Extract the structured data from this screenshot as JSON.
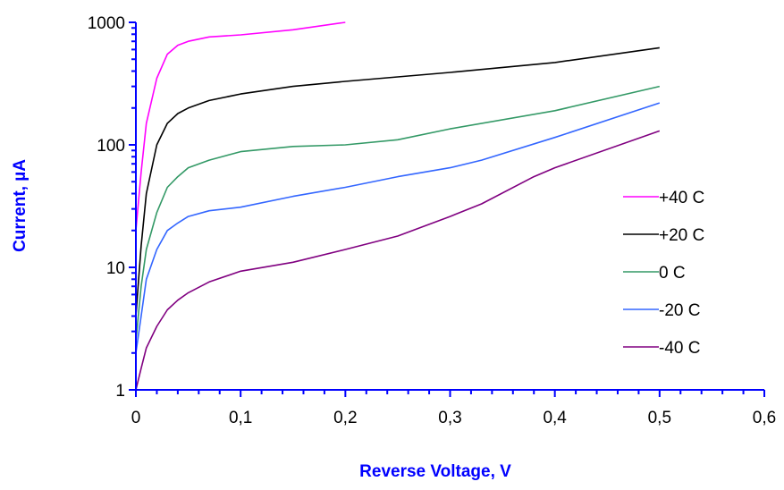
{
  "chart_data": {
    "type": "line",
    "xlabel": "Reverse Voltage, V",
    "ylabel": "Current, µA",
    "xlim": [
      0,
      0.6
    ],
    "ylim": [
      1,
      1000
    ],
    "yscale": "log",
    "xticks": [
      "0",
      "0,1",
      "0,2",
      "0,3",
      "0,4",
      "0,5",
      "0,6"
    ],
    "yticks": [
      "1",
      "10",
      "100",
      "1000"
    ],
    "grid": false,
    "legend_position": "right",
    "axis_color": "#0000ff",
    "axis_title_color": "#0000ff",
    "series": [
      {
        "name": "+40 C",
        "color": "#ff00ff",
        "points": [
          [
            0,
            20
          ],
          [
            0.005,
            60
          ],
          [
            0.01,
            150
          ],
          [
            0.02,
            350
          ],
          [
            0.03,
            550
          ],
          [
            0.04,
            650
          ],
          [
            0.05,
            700
          ],
          [
            0.07,
            760
          ],
          [
            0.1,
            790
          ],
          [
            0.15,
            870
          ],
          [
            0.2,
            1000
          ]
        ]
      },
      {
        "name": "+20 C",
        "color": "#000000",
        "points": [
          [
            0,
            4
          ],
          [
            0.005,
            15
          ],
          [
            0.01,
            40
          ],
          [
            0.02,
            100
          ],
          [
            0.03,
            150
          ],
          [
            0.04,
            180
          ],
          [
            0.05,
            200
          ],
          [
            0.07,
            230
          ],
          [
            0.1,
            260
          ],
          [
            0.15,
            300
          ],
          [
            0.2,
            330
          ],
          [
            0.3,
            390
          ],
          [
            0.4,
            470
          ],
          [
            0.5,
            620
          ]
        ]
      },
      {
        "name": "0 C",
        "color": "#339966",
        "points": [
          [
            0,
            2.5
          ],
          [
            0.005,
            7
          ],
          [
            0.01,
            14
          ],
          [
            0.02,
            28
          ],
          [
            0.03,
            45
          ],
          [
            0.04,
            55
          ],
          [
            0.05,
            65
          ],
          [
            0.07,
            75
          ],
          [
            0.1,
            88
          ],
          [
            0.15,
            97
          ],
          [
            0.2,
            100
          ],
          [
            0.25,
            110
          ],
          [
            0.3,
            135
          ],
          [
            0.4,
            190
          ],
          [
            0.5,
            300
          ]
        ]
      },
      {
        "name": "-20 C",
        "color": "#3366ff",
        "points": [
          [
            0,
            2
          ],
          [
            0.005,
            4
          ],
          [
            0.01,
            8
          ],
          [
            0.02,
            14
          ],
          [
            0.03,
            20
          ],
          [
            0.04,
            23
          ],
          [
            0.05,
            26
          ],
          [
            0.07,
            29
          ],
          [
            0.1,
            31
          ],
          [
            0.15,
            38
          ],
          [
            0.2,
            45
          ],
          [
            0.25,
            55
          ],
          [
            0.3,
            65
          ],
          [
            0.33,
            75
          ],
          [
            0.4,
            115
          ],
          [
            0.5,
            220
          ]
        ]
      },
      {
        "name": "-40 C",
        "color": "#800080",
        "points": [
          [
            0,
            1
          ],
          [
            0.005,
            1.5
          ],
          [
            0.01,
            2.2
          ],
          [
            0.02,
            3.3
          ],
          [
            0.03,
            4.5
          ],
          [
            0.04,
            5.4
          ],
          [
            0.05,
            6.2
          ],
          [
            0.07,
            7.6
          ],
          [
            0.1,
            9.3
          ],
          [
            0.15,
            11
          ],
          [
            0.2,
            14
          ],
          [
            0.25,
            18
          ],
          [
            0.3,
            26
          ],
          [
            0.33,
            33
          ],
          [
            0.38,
            55
          ],
          [
            0.4,
            65
          ],
          [
            0.5,
            130
          ]
        ]
      }
    ]
  }
}
